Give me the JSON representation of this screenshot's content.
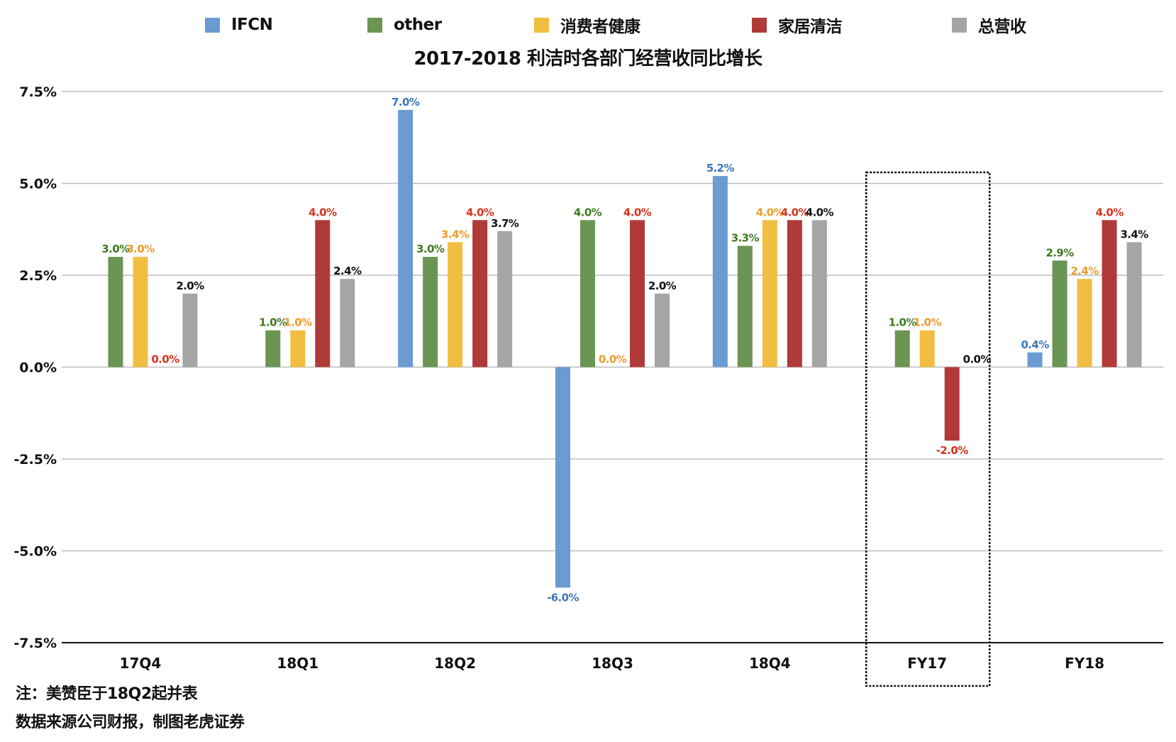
{
  "chart_data": {
    "type": "bar",
    "title": "2017-2018 利洁时各部门经营收同比增长",
    "xlabel": "",
    "ylabel": "",
    "ylim": [
      -7.5,
      7.5
    ],
    "yticks": [
      "7.5%",
      "5.0%",
      "2.5%",
      "0.0%",
      "-2.5%",
      "-5.0%",
      "-7.5%"
    ],
    "ytick_values": [
      7.5,
      5.0,
      2.5,
      0.0,
      -2.5,
      -5.0,
      -7.5
    ],
    "grid": true,
    "legend_position": "top",
    "categories": [
      "17Q4",
      "18Q1",
      "18Q2",
      "18Q3",
      "18Q4",
      "FY17",
      "FY18"
    ],
    "highlighted_category": "FY17",
    "series": [
      {
        "name": "IFCN",
        "color": "#6A9BD1",
        "label_color": "#3D78B8",
        "values": [
          null,
          null,
          7.0,
          -6.0,
          5.2,
          null,
          0.4
        ],
        "labels": [
          "",
          "",
          "7.0%",
          "-6.0%",
          "5.2%",
          "",
          "0.4%"
        ]
      },
      {
        "name": "other",
        "color": "#6A9553",
        "label_color": "#3E7A22",
        "values": [
          3.0,
          1.0,
          3.0,
          4.0,
          3.3,
          1.0,
          2.9
        ],
        "labels": [
          "3.0%",
          "1.0%",
          "3.0%",
          "4.0%",
          "3.3%",
          "1.0%",
          "2.9%"
        ]
      },
      {
        "name": "消费者健康",
        "color": "#F1BE42",
        "label_color": "#EE9B2A",
        "values": [
          3.0,
          1.0,
          3.4,
          0.0,
          4.0,
          1.0,
          2.4
        ],
        "labels": [
          "3.0%",
          "1.0%",
          "3.4%",
          "0.0%",
          "4.0%",
          "1.0%",
          "2.4%"
        ]
      },
      {
        "name": "家居清洁",
        "color": "#B03A38",
        "label_color": "#D7321F",
        "values": [
          0.0,
          4.0,
          4.0,
          4.0,
          4.0,
          -2.0,
          4.0
        ],
        "labels": [
          "0.0%",
          "4.0%",
          "4.0%",
          "4.0%",
          "4.0%",
          "-2.0%",
          "4.0%"
        ]
      },
      {
        "name": "总营收",
        "color": "#A5A5A5",
        "label_color": "#111111",
        "values": [
          2.0,
          2.4,
          3.7,
          2.0,
          4.0,
          0.0,
          3.4
        ],
        "labels": [
          "2.0%",
          "2.4%",
          "3.7%",
          "2.0%",
          "4.0%",
          "0.0%",
          "3.4%"
        ]
      }
    ]
  },
  "notes": {
    "line1": "注：美赞臣于18Q2起并表",
    "line2": "数据来源公司财报，制图老虎证券"
  }
}
